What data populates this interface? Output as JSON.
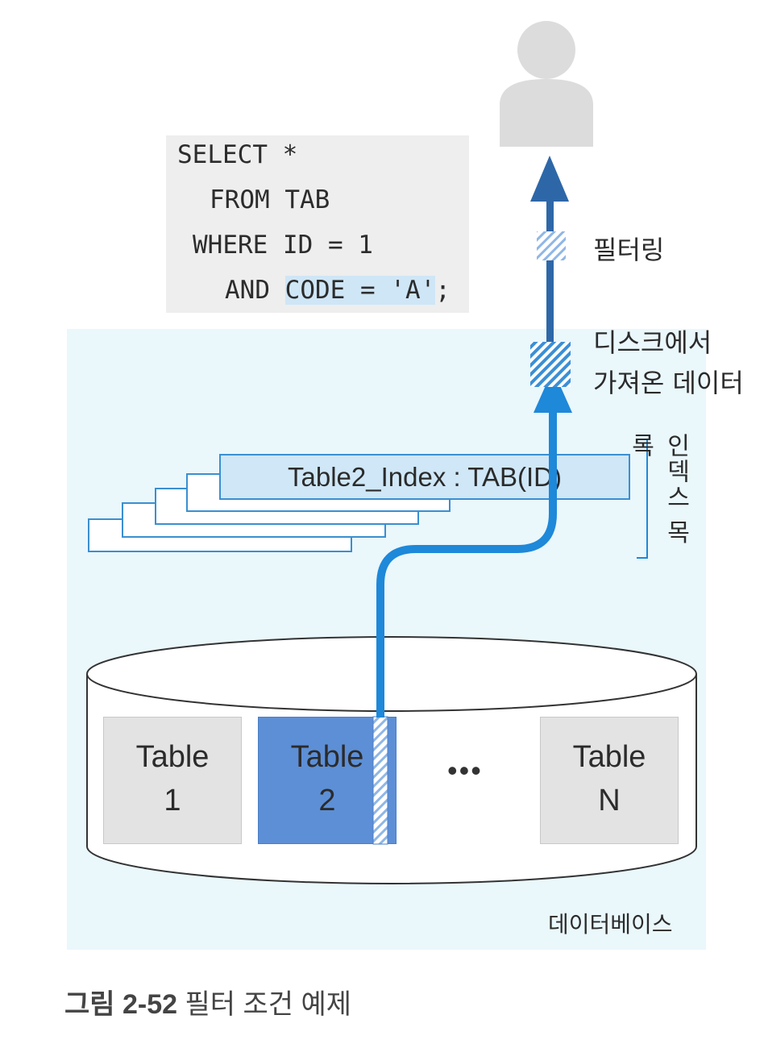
{
  "sql": {
    "line1": "SELECT *",
    "line2": "FROM TAB",
    "line3": "WHERE ID = 1",
    "line4_prefix": "AND ",
    "line4_highlight": "CODE = 'A'",
    "line4_suffix": ";"
  },
  "labels": {
    "filtering": "필터링",
    "disk_data_line1": "디스크에서",
    "disk_data_line2": "가져온 데이터",
    "index_list": "인덱스 목록",
    "database": "데이터베이스"
  },
  "index": {
    "front_label": "Table2_Index : TAB(ID)"
  },
  "tables": [
    {
      "line1": "Table",
      "line2": "1"
    },
    {
      "line1": "Table",
      "line2": "2"
    },
    {
      "line1": "Table",
      "line2": "N"
    }
  ],
  "ellipsis": "•••",
  "caption": {
    "number": "그림 2-52",
    "text": "필터 조건 예제"
  },
  "colors": {
    "accent_blue": "#1e88d9",
    "dark_blue": "#2e67a8",
    "highlight_table": "#5d8fd6",
    "db_background": "#eaf7fb"
  },
  "icons": [
    "user-icon"
  ]
}
